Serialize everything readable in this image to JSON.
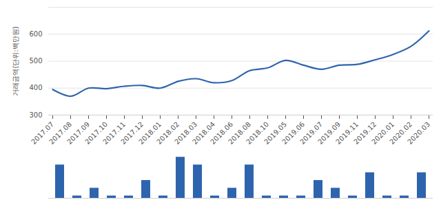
{
  "chart_data": [
    {
      "type": "line",
      "y_label": "거래금액(단위:백만원)",
      "categories": [
        "2017.07",
        "2017.08",
        "2017.09",
        "2017.10",
        "2017.11",
        "2017.12",
        "2018.01",
        "2018.02",
        "2018.03",
        "2018.04",
        "2018.06",
        "2018.08",
        "2018.10",
        "2019.05",
        "2019.06",
        "2019.07",
        "2019.09",
        "2019.11",
        "2019.12",
        "2020.01",
        "2020.02",
        "2020.03"
      ],
      "values": [
        395,
        370,
        400,
        398,
        407,
        410,
        400,
        425,
        435,
        420,
        428,
        465,
        475,
        503,
        485,
        470,
        485,
        488,
        505,
        525,
        555,
        612
      ],
      "color": "#2e64ad",
      "ylim": [
        300,
        700
      ],
      "yticks": [
        300,
        400,
        500,
        600
      ],
      "grid": true
    },
    {
      "type": "bar",
      "categories": [
        "2017.07",
        "2017.08",
        "2017.09",
        "2017.10",
        "2017.11",
        "2017.12",
        "2018.01",
        "2018.02",
        "2018.03",
        "2018.04",
        "2018.06",
        "2018.08",
        "2018.10",
        "2019.05",
        "2019.06",
        "2019.07",
        "2019.09",
        "2019.11",
        "2019.12",
        "2020.01",
        "2020.02",
        "2020.03"
      ],
      "values": [
        5,
        1,
        2,
        1,
        1,
        3,
        1,
        6,
        5,
        1,
        2,
        5,
        1,
        1,
        1,
        3,
        2,
        1,
        4,
        1,
        1,
        4
      ],
      "color": "#2e64ad",
      "ylim": [
        0.7,
        6.2
      ],
      "tick_labels": false
    }
  ]
}
